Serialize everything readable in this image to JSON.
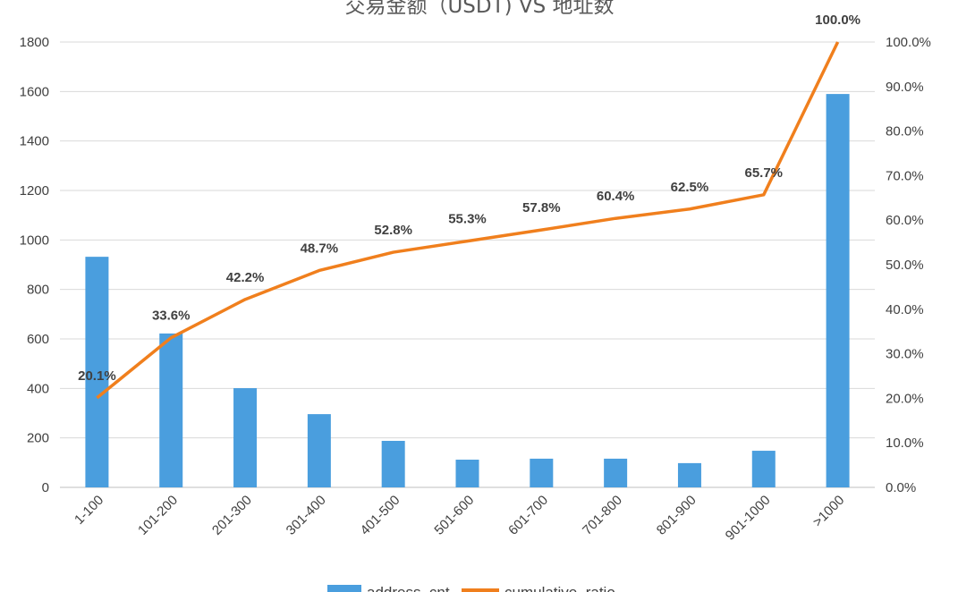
{
  "chart_data": {
    "type": "bar",
    "title": "交易金额（USDT) VS 地址数",
    "categories": [
      "1-100",
      "101-200",
      "201-300",
      "301-400",
      "401-500",
      "501-600",
      "601-700",
      "701-800",
      "801-900",
      "901-1000",
      ">1000"
    ],
    "series": [
      {
        "name": "address_cnt",
        "type": "bar",
        "axis": "left",
        "color": "#4a9ede",
        "values": [
          932,
          622,
          401,
          296,
          188,
          112,
          116,
          116,
          98,
          148,
          1590
        ]
      },
      {
        "name": "cumulative_ratio",
        "type": "line",
        "axis": "right",
        "color": "#f07f1d",
        "values": [
          20.1,
          33.6,
          42.2,
          48.7,
          52.8,
          55.3,
          57.8,
          60.4,
          62.5,
          65.7,
          100.0
        ],
        "labels": [
          "20.1%",
          "33.6%",
          "42.2%",
          "48.7%",
          "52.8%",
          "55.3%",
          "57.8%",
          "60.4%",
          "62.5%",
          "65.7%",
          "100.0%"
        ]
      }
    ],
    "ylim": [
      0,
      1800
    ],
    "yticks": [
      "0",
      "200",
      "400",
      "600",
      "800",
      "1000",
      "1200",
      "1400",
      "1600",
      "1800"
    ],
    "y2lim": [
      0,
      100
    ],
    "y2ticks": [
      "0.0%",
      "10.0%",
      "20.0%",
      "30.0%",
      "40.0%",
      "50.0%",
      "60.0%",
      "70.0%",
      "80.0%",
      "90.0%",
      "100.0%"
    ],
    "grid": true,
    "legend": "bottom"
  }
}
